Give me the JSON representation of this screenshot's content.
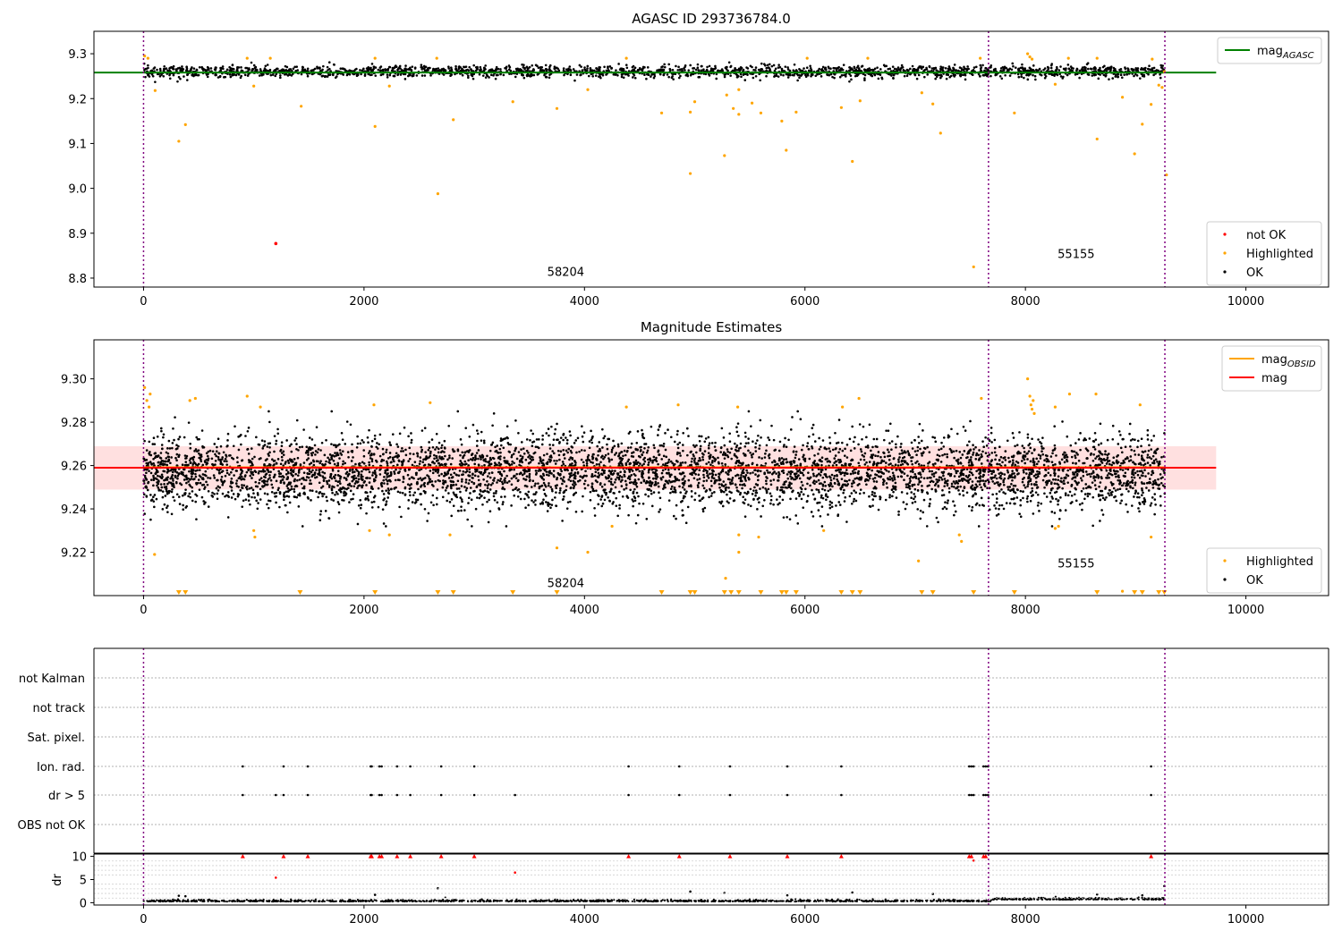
{
  "chart_data": [
    {
      "type": "scatter",
      "title": "AGASC ID 293736784.0",
      "xlim": [
        -450,
        10750
      ],
      "ylim": [
        8.78,
        9.35
      ],
      "xticks": [
        0,
        2000,
        4000,
        6000,
        8000,
        10000
      ],
      "yticks": [
        8.8,
        8.9,
        9.0,
        9.1,
        9.2,
        9.3
      ],
      "ytick_labels": [
        "8.8",
        "8.9",
        "9.0",
        "9.1",
        "9.2",
        "9.3"
      ],
      "grid": false,
      "vlines": [
        0,
        7665,
        9265
      ],
      "obsid_labels": [
        {
          "text": "58204",
          "x": 3830,
          "y": 8.805
        },
        {
          "text": "55155",
          "x": 8460,
          "y": 8.845
        }
      ],
      "mag_agasc": 9.258,
      "mag_line_range": [
        -450,
        9730
      ],
      "ok_cloud": {
        "x_range": [
          0,
          9265
        ],
        "center": 9.26,
        "spread": 0.012,
        "count": 2200
      },
      "highlighted": [
        {
          "x": 10,
          "y": 9.295
        },
        {
          "x": 40,
          "y": 9.29
        },
        {
          "x": 320,
          "y": 9.105
        },
        {
          "x": 380,
          "y": 9.142
        },
        {
          "x": 105,
          "y": 9.218
        },
        {
          "x": 1000,
          "y": 9.228
        },
        {
          "x": 1430,
          "y": 9.183
        },
        {
          "x": 2100,
          "y": 9.138
        },
        {
          "x": 2230,
          "y": 9.228
        },
        {
          "x": 2670,
          "y": 8.988
        },
        {
          "x": 2810,
          "y": 9.153
        },
        {
          "x": 3350,
          "y": 9.193
        },
        {
          "x": 3750,
          "y": 9.178
        },
        {
          "x": 4030,
          "y": 9.22
        },
        {
          "x": 4700,
          "y": 9.168
        },
        {
          "x": 4960,
          "y": 9.033
        },
        {
          "x": 4960,
          "y": 9.17
        },
        {
          "x": 5000,
          "y": 9.193
        },
        {
          "x": 5270,
          "y": 9.073
        },
        {
          "x": 5290,
          "y": 9.208
        },
        {
          "x": 5350,
          "y": 9.178
        },
        {
          "x": 5400,
          "y": 9.22
        },
        {
          "x": 5400,
          "y": 9.165
        },
        {
          "x": 5520,
          "y": 9.19
        },
        {
          "x": 5600,
          "y": 9.168
        },
        {
          "x": 5790,
          "y": 9.15
        },
        {
          "x": 5830,
          "y": 9.085
        },
        {
          "x": 5920,
          "y": 9.17
        },
        {
          "x": 6330,
          "y": 9.18
        },
        {
          "x": 6430,
          "y": 9.06
        },
        {
          "x": 6500,
          "y": 9.195
        },
        {
          "x": 7060,
          "y": 9.213
        },
        {
          "x": 7160,
          "y": 9.188
        },
        {
          "x": 7230,
          "y": 9.123
        },
        {
          "x": 7530,
          "y": 8.825
        },
        {
          "x": 7900,
          "y": 9.168
        },
        {
          "x": 8020,
          "y": 9.3
        },
        {
          "x": 8040,
          "y": 9.293
        },
        {
          "x": 8060,
          "y": 9.288
        },
        {
          "x": 8270,
          "y": 9.232
        },
        {
          "x": 8650,
          "y": 9.11
        },
        {
          "x": 8880,
          "y": 9.203
        },
        {
          "x": 8990,
          "y": 9.077
        },
        {
          "x": 9060,
          "y": 9.143
        },
        {
          "x": 9140,
          "y": 9.187
        },
        {
          "x": 9210,
          "y": 9.23
        },
        {
          "x": 9240,
          "y": 9.225
        },
        {
          "x": 9280,
          "y": 9.03
        },
        {
          "x": 9260,
          "y": 9.26
        },
        {
          "x": 9150,
          "y": 9.288
        },
        {
          "x": 8390,
          "y": 9.29
        },
        {
          "x": 8650,
          "y": 9.29
        },
        {
          "x": 7590,
          "y": 9.29
        },
        {
          "x": 6570,
          "y": 9.29
        },
        {
          "x": 6020,
          "y": 9.29
        },
        {
          "x": 4380,
          "y": 9.29
        },
        {
          "x": 2660,
          "y": 9.29
        },
        {
          "x": 2100,
          "y": 9.29
        },
        {
          "x": 940,
          "y": 9.29
        },
        {
          "x": 1150,
          "y": 9.29
        }
      ],
      "not_ok": [
        {
          "x": 1200,
          "y": 8.877
        }
      ],
      "legend_top": {
        "placement": "upper right",
        "entries": [
          {
            "label": "mag",
            "subscript": "AGASC",
            "color": "#008000"
          }
        ]
      },
      "legend_bottom": {
        "placement": "lower right",
        "entries": [
          {
            "label": "not OK",
            "color": "#ff0000"
          },
          {
            "label": "Highlighted",
            "color": "#ffa500"
          },
          {
            "label": "OK",
            "color": "#000000"
          }
        ]
      }
    },
    {
      "type": "scatter",
      "title": "Magnitude Estimates",
      "xlim": [
        -450,
        10750
      ],
      "ylim": [
        9.2,
        9.318
      ],
      "xticks": [
        0,
        2000,
        4000,
        6000,
        8000,
        10000
      ],
      "yticks": [
        9.22,
        9.24,
        9.26,
        9.28,
        9.3
      ],
      "ytick_labels": [
        "9.22",
        "9.24",
        "9.26",
        "9.28",
        "9.30"
      ],
      "grid": false,
      "vlines": [
        0,
        7665,
        9265
      ],
      "obsid_labels": [
        {
          "text": "58204",
          "x": 3830,
          "y": 9.204
        },
        {
          "text": "55155",
          "x": 8460,
          "y": 9.213
        }
      ],
      "mag": 9.259,
      "mag_band": [
        9.2489,
        9.2689
      ],
      "mag_line_range": [
        -450,
        9730
      ],
      "mag_obsid": 9.2592,
      "mag_obsid_range": [
        0,
        9265
      ],
      "ok_cloud": {
        "x_range": [
          0,
          9265
        ],
        "center": 9.257,
        "spread": 0.0085,
        "count": 5200
      },
      "highlighted": [
        {
          "x": 10,
          "y": 9.296
        },
        {
          "x": 30,
          "y": 9.29
        },
        {
          "x": 50,
          "y": 9.287
        },
        {
          "x": 60,
          "y": 9.293
        },
        {
          "x": 100,
          "y": 9.219
        },
        {
          "x": 1000,
          "y": 9.23
        },
        {
          "x": 1010,
          "y": 9.227
        },
        {
          "x": 2050,
          "y": 9.23
        },
        {
          "x": 2230,
          "y": 9.228
        },
        {
          "x": 2780,
          "y": 9.228
        },
        {
          "x": 3750,
          "y": 9.222
        },
        {
          "x": 4030,
          "y": 9.22
        },
        {
          "x": 4250,
          "y": 9.232
        },
        {
          "x": 5280,
          "y": 9.208
        },
        {
          "x": 5400,
          "y": 9.22
        },
        {
          "x": 5400,
          "y": 9.228
        },
        {
          "x": 5580,
          "y": 9.227
        },
        {
          "x": 6170,
          "y": 9.23
        },
        {
          "x": 7030,
          "y": 9.216
        },
        {
          "x": 7400,
          "y": 9.228
        },
        {
          "x": 7420,
          "y": 9.225
        },
        {
          "x": 8270,
          "y": 9.231
        },
        {
          "x": 8300,
          "y": 9.232
        },
        {
          "x": 9140,
          "y": 9.227
        },
        {
          "x": 8020,
          "y": 9.3
        },
        {
          "x": 8040,
          "y": 9.292
        },
        {
          "x": 8050,
          "y": 9.288
        },
        {
          "x": 8060,
          "y": 9.286
        },
        {
          "x": 8070,
          "y": 9.29
        },
        {
          "x": 8080,
          "y": 9.284
        },
        {
          "x": 8270,
          "y": 9.287
        },
        {
          "x": 8400,
          "y": 9.293
        },
        {
          "x": 8640,
          "y": 9.293
        },
        {
          "x": 9040,
          "y": 9.288
        },
        {
          "x": 7600,
          "y": 9.291
        },
        {
          "x": 6490,
          "y": 9.291
        },
        {
          "x": 6340,
          "y": 9.287
        },
        {
          "x": 5390,
          "y": 9.287
        },
        {
          "x": 4850,
          "y": 9.288
        },
        {
          "x": 4380,
          "y": 9.287
        },
        {
          "x": 2600,
          "y": 9.289
        },
        {
          "x": 2090,
          "y": 9.288
        },
        {
          "x": 940,
          "y": 9.292
        },
        {
          "x": 1060,
          "y": 9.287
        },
        {
          "x": 420,
          "y": 9.29
        },
        {
          "x": 470,
          "y": 9.291
        },
        {
          "x": 8880,
          "y": 9.202
        }
      ],
      "off_scale_low_x": [
        320,
        380,
        1420,
        2100,
        2670,
        2810,
        3350,
        3750,
        4700,
        4960,
        5000,
        5270,
        5330,
        5400,
        5600,
        5790,
        5830,
        5920,
        6330,
        6430,
        6500,
        7060,
        7160,
        7530,
        7900,
        8650,
        8990,
        9060,
        9210,
        9260
      ],
      "legend_top": {
        "placement": "upper right",
        "entries": [
          {
            "label": "mag",
            "subscript": "OBSID",
            "color": "#ffa500"
          },
          {
            "label": "mag",
            "color": "#ff0000"
          }
        ]
      },
      "legend_bottom": {
        "placement": "lower right",
        "entries": [
          {
            "label": "Highlighted",
            "color": "#ffa500"
          },
          {
            "label": "OK",
            "color": "#000000"
          }
        ]
      }
    },
    {
      "type": "scatter",
      "title": "",
      "xlim": [
        -450,
        10750
      ],
      "xticks": [
        0,
        2000,
        4000,
        6000,
        8000,
        10000
      ],
      "grid": true,
      "vlines": [
        0,
        7665,
        9265
      ],
      "flag_rows": [
        "not Kalman",
        "not track",
        "Sat. pixel.",
        "Ion. rad.",
        "dr > 5",
        "OBS not OK"
      ],
      "flags": {
        "Ion. rad.": [
          900,
          1270,
          1490,
          2060,
          2070,
          2140,
          2160,
          2300,
          2420,
          2700,
          3000,
          4400,
          4860,
          5320,
          5840,
          6330,
          7490,
          7510,
          7530,
          7620,
          7640,
          7660,
          9140
        ],
        "dr > 5": [
          900,
          1200,
          1270,
          1490,
          2060,
          2070,
          2140,
          2160,
          2300,
          2420,
          2700,
          3000,
          3370,
          4400,
          4860,
          5320,
          5840,
          6330,
          7490,
          7510,
          7530,
          7620,
          7640,
          7660,
          9140
        ]
      },
      "dr_ylim": [
        -0.5,
        10.5
      ],
      "dr_yticks": [
        0,
        5,
        10
      ],
      "dr_ylabel": "dr",
      "dr_capped": [
        900,
        1270,
        1490,
        2060,
        2070,
        2140,
        2160,
        2300,
        2420,
        2700,
        3000,
        4400,
        4860,
        5320,
        5840,
        6330,
        7490,
        7510,
        7620,
        7640,
        9140
      ],
      "dr_outliers": [
        {
          "x": 1200,
          "y": 5.4
        },
        {
          "x": 2670,
          "y": 3.1
        },
        {
          "x": 3370,
          "y": 6.5
        },
        {
          "x": 7530,
          "y": 9.1
        },
        {
          "x": 9260,
          "y": 3.6
        },
        {
          "x": 2100,
          "y": 1.7
        },
        {
          "x": 4960,
          "y": 2.4
        },
        {
          "x": 5840,
          "y": 1.6
        },
        {
          "x": 320,
          "y": 1.5
        },
        {
          "x": 380,
          "y": 1.4
        },
        {
          "x": 6430,
          "y": 2.2
        },
        {
          "x": 7160,
          "y": 1.9
        },
        {
          "x": 8650,
          "y": 1.8
        },
        {
          "x": 9060,
          "y": 1.6
        },
        {
          "x": 5270,
          "y": 2.1
        }
      ],
      "dr_cloud": {
        "x_range": [
          0,
          9265
        ],
        "center": 0.25,
        "spread": 0.18,
        "count": 1400
      }
    }
  ]
}
